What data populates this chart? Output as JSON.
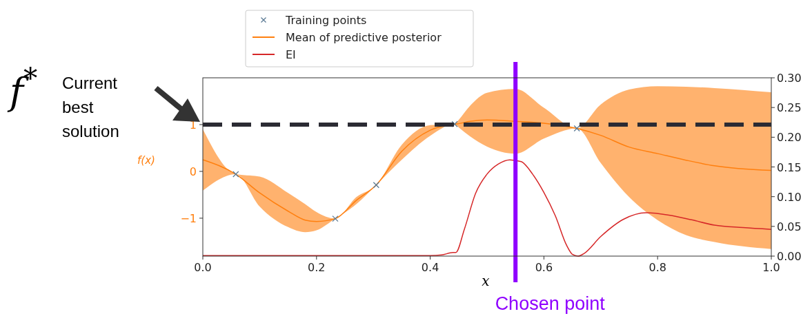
{
  "chart_data": {
    "type": "line",
    "xlabel": "x",
    "ylabel": "f(x)",
    "xlim": [
      0,
      1
    ],
    "xticks": [
      {
        "value": 0,
        "label": "0.0"
      },
      {
        "value": 0.2,
        "label": "0.2"
      },
      {
        "value": 0.4,
        "label": "0.4"
      },
      {
        "value": 0.6,
        "label": "0.6"
      },
      {
        "value": 0.8,
        "label": "0.8"
      },
      {
        "value": 1,
        "label": "1.0"
      }
    ],
    "ylim": [
      -1.81,
      2.0
    ],
    "yticks": [
      {
        "value": -1,
        "label": "−1"
      },
      0,
      1
    ],
    "y2lim": [
      0,
      0.3
    ],
    "y2ticks": [
      {
        "value": 0,
        "label": "0.00"
      },
      {
        "value": 0.05,
        "label": "0.05"
      },
      {
        "value": 0.1,
        "label": "0.10"
      },
      {
        "value": 0.15,
        "label": "0.15"
      },
      {
        "value": 0.2,
        "label": "0.20"
      },
      {
        "value": 0.25,
        "label": "0.25"
      },
      {
        "value": 0.3,
        "label": "0.30"
      }
    ],
    "legend": "top",
    "grid": false,
    "series": [
      {
        "name": "Training points",
        "type": "scatter",
        "marker": "cross",
        "color": "#5b7a94",
        "x": [
          0.058,
          0.233,
          0.305,
          0.443,
          0.658
        ],
        "values": [
          -0.06,
          -1.01,
          -0.29,
          1.01,
          0.92
        ]
      },
      {
        "name": "Mean of predictive posterior",
        "color": "#ff7f0e",
        "x": [
          0,
          0.058,
          0.1,
          0.15,
          0.18,
          0.2,
          0.233,
          0.27,
          0.305,
          0.35,
          0.4,
          0.443,
          0.45,
          0.47,
          0.5,
          0.55,
          0.6,
          0.658,
          0.7,
          0.75,
          0.8,
          0.85,
          0.9,
          1.0
        ],
        "values": [
          0.25,
          -0.06,
          -0.46,
          -0.85,
          -1.04,
          -1.07,
          -1.01,
          -0.62,
          -0.29,
          0.43,
          0.88,
          1.01,
          1.02,
          1.07,
          1.1,
          1.07,
          1.03,
          0.92,
          0.77,
          0.52,
          0.38,
          0.24,
          0.12,
          0.02
        ],
        "lower": [
          -0.41,
          -0.06,
          -0.75,
          -1.19,
          -1.3,
          -1.26,
          -1.01,
          -0.7,
          -0.29,
          0.25,
          0.76,
          1.01,
          0.94,
          0.75,
          0.53,
          0.38,
          0.7,
          0.92,
          0.18,
          -0.55,
          -1.04,
          -1.36,
          -1.51,
          -1.66
        ],
        "upper": [
          0.9,
          -0.06,
          -0.11,
          -0.46,
          -0.7,
          -0.87,
          -1.01,
          -0.55,
          -0.29,
          0.57,
          0.99,
          1.01,
          1.1,
          1.4,
          1.68,
          1.76,
          1.36,
          0.92,
          1.43,
          1.75,
          1.82,
          1.81,
          1.78,
          1.69
        ]
      },
      {
        "name": "EI",
        "axis": "y2",
        "color": "#d62728",
        "x": [
          0,
          0.2,
          0.4,
          0.42,
          0.44,
          0.445,
          0.46,
          0.48,
          0.5,
          0.52,
          0.54,
          0.56,
          0.58,
          0.6,
          0.62,
          0.64,
          0.65,
          0.66,
          0.67,
          0.7,
          0.74,
          0.78,
          0.82,
          0.86,
          0.9,
          0.95,
          1.0
        ],
        "values": [
          0.001,
          0.001,
          0.001,
          0.002,
          0.006,
          0.006,
          0.045,
          0.106,
          0.138,
          0.155,
          0.162,
          0.159,
          0.138,
          0.107,
          0.068,
          0.018,
          0.003,
          0.0,
          0.004,
          0.033,
          0.062,
          0.073,
          0.069,
          0.061,
          0.052,
          0.048,
          0.045
        ]
      }
    ],
    "ref_lines": [
      {
        "axis": "y",
        "value": 1,
        "color": "#2b2b33",
        "line_style": "dashed"
      },
      {
        "axis": "x",
        "value": 0.55,
        "label": "Chosen point",
        "color": "#8f00ff",
        "line_style": "solid"
      }
    ],
    "annotations": [
      "f$^{*}$",
      "Current best solution"
    ]
  }
}
